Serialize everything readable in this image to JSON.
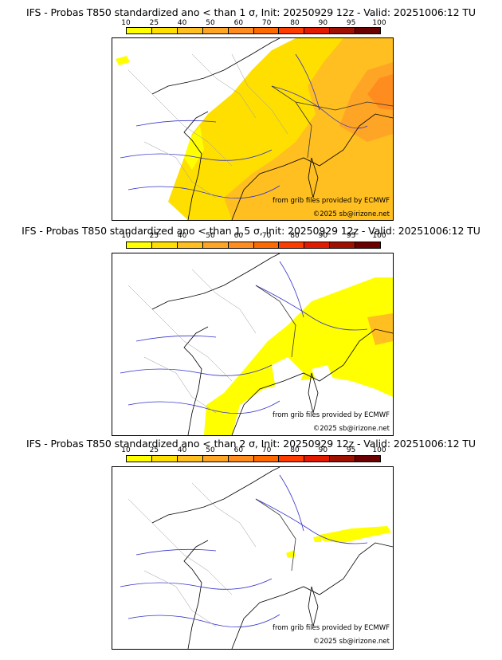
{
  "legend": {
    "ticks": [
      "10",
      "25",
      "40",
      "50",
      "60",
      "70",
      "80",
      "90",
      "95",
      "100"
    ],
    "colors": [
      "#ffff00",
      "#ffdf00",
      "#ffbf21",
      "#ffa526",
      "#ff8c1e",
      "#ff6a00",
      "#ff3c00",
      "#e21a00",
      "#a01000",
      "#6b0000"
    ]
  },
  "panels": [
    {
      "title": "IFS - Probas T850  standardized ano < than 1 σ, Init: 20250929 12z - Valid: 20251006:12 TU",
      "credit_data": "from grib files provided by ECMWF",
      "credit_copyright": "©2025 sb@irizone.net"
    },
    {
      "title": "IFS - Probas T850  standardized ano < than 1.5 σ, Init: 20250929 12z - Valid: 20251006:12 TU",
      "credit_data": "from grib files provided by ECMWF",
      "credit_copyright": "©2025 sb@irizone.net"
    },
    {
      "title": "IFS - Probas T850  standardized ano < than 2 σ, Init: 20250929 12z - Valid: 20251006:12 TU",
      "credit_data": "from grib files provided by ECMWF",
      "credit_copyright": "©2025 sb@irizone.net"
    }
  ]
}
